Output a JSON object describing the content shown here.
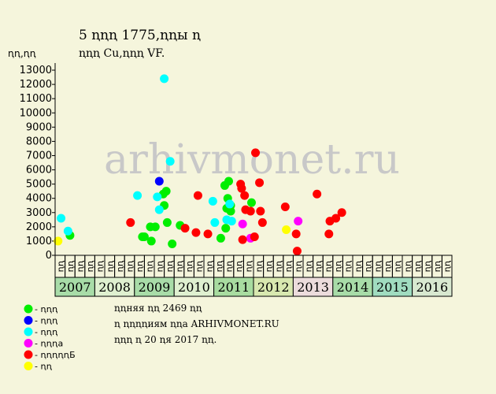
{
  "chart_data": {
    "type": "scatter",
    "title": "5 ꞑꞑꞑ 1775,ꞑꞑы ꞑ",
    "subtitle": "ꞑꞑꞑ Cu,ꞑꞑꞑ VF.",
    "ylabel": "ꞑꞑ,ꞑꞑ",
    "ylim": [
      0,
      13500
    ],
    "yticks": [
      0,
      1000,
      2000,
      3000,
      4000,
      5000,
      6000,
      7000,
      8000,
      9000,
      10000,
      11000,
      12000,
      13000
    ],
    "grid": false,
    "watermark": "arhivmonet.ru",
    "years": [
      {
        "label": "2007",
        "color": "#a8dca8"
      },
      {
        "label": "2008",
        "color": "#dff0d0"
      },
      {
        "label": "2009",
        "color": "#a8dca8"
      },
      {
        "label": "2010",
        "color": "#dff0d0"
      },
      {
        "label": "2011",
        "color": "#a8dca0"
      },
      {
        "label": "2012",
        "color": "#d8e8b0"
      },
      {
        "label": "2013",
        "color": "#ecdcdc"
      },
      {
        "label": "2014",
        "color": "#a8dca8"
      },
      {
        "label": "2015",
        "color": "#a0dcc0"
      },
      {
        "label": "2016",
        "color": "#d8e8d0"
      }
    ],
    "quarter_labels": [
      "ꞑꞑ",
      "ꞑꞑ",
      "ꞑꞑ",
      "ꞑꞑ"
    ],
    "x_unit": "quarter index from 2007 Q1",
    "series": [
      {
        "name": "- ꞑꞑꞑ",
        "color": "#00ee00",
        "points": [
          [
            1.0,
            1400
          ],
          [
            8.3,
            1300
          ],
          [
            8.5,
            1300
          ],
          [
            9.1,
            2000
          ],
          [
            9.2,
            1000
          ],
          [
            9.6,
            2000
          ],
          [
            10.4,
            4300
          ],
          [
            10.5,
            3500
          ],
          [
            10.7,
            4500
          ],
          [
            10.8,
            2300
          ],
          [
            11.3,
            800
          ],
          [
            12.1,
            2100
          ],
          [
            16.2,
            1200
          ],
          [
            16.6,
            4900
          ],
          [
            16.7,
            1900
          ],
          [
            16.8,
            3300
          ],
          [
            16.9,
            4000
          ],
          [
            17.0,
            5200
          ],
          [
            17.2,
            3100
          ],
          [
            17.2,
            3500
          ],
          [
            19.3,
            3700
          ]
        ]
      },
      {
        "name": "- ꞑꞑꞑ",
        "color": "#0000ff",
        "points": [
          [
            10.0,
            5200
          ]
        ]
      },
      {
        "name": "- ꞑꞑꞑ",
        "color": "#00ffff",
        "points": [
          [
            0.1,
            2600
          ],
          [
            0.8,
            1700
          ],
          [
            7.8,
            4200
          ],
          [
            9.8,
            4100
          ],
          [
            10.0,
            3200
          ],
          [
            10.5,
            12400
          ],
          [
            11.1,
            6600
          ],
          [
            15.4,
            3800
          ],
          [
            15.6,
            2300
          ],
          [
            16.8,
            2500
          ],
          [
            17.1,
            3600
          ],
          [
            17.3,
            2400
          ]
        ]
      },
      {
        "name": "- ꞑꞑꞑa",
        "color": "#ff00ff",
        "points": [
          [
            18.4,
            2200
          ],
          [
            19.2,
            1200
          ],
          [
            24.0,
            2400
          ]
        ]
      },
      {
        "name": "- ꞑꞑꞑꞑꞑБ",
        "color": "#ff0000",
        "points": [
          [
            7.1,
            2300
          ],
          [
            12.6,
            1900
          ],
          [
            13.7,
            1600
          ],
          [
            13.9,
            4200
          ],
          [
            14.9,
            1500
          ],
          [
            18.2,
            5000
          ],
          [
            18.3,
            4700
          ],
          [
            18.4,
            1100
          ],
          [
            18.6,
            4200
          ],
          [
            18.7,
            3200
          ],
          [
            19.2,
            3100
          ],
          [
            19.6,
            1300
          ],
          [
            19.7,
            7200
          ],
          [
            20.1,
            5100
          ],
          [
            20.2,
            3100
          ],
          [
            20.4,
            2300
          ],
          [
            22.7,
            3400
          ],
          [
            23.8,
            1500
          ],
          [
            23.9,
            300
          ],
          [
            25.9,
            4300
          ],
          [
            27.1,
            1500
          ],
          [
            27.2,
            2400
          ],
          [
            27.8,
            2600
          ],
          [
            28.4,
            3000
          ]
        ]
      },
      {
        "name": "- ꞑꞑ",
        "color": "#ffff00",
        "points": [
          [
            -0.2,
            1000
          ],
          [
            22.8,
            1800
          ]
        ]
      }
    ]
  },
  "notes": [
    "ꞑꞑняя ꞑꞑ 2469 ꞑꞑ",
    "ꞑ ꞑꞑꞑꞑиям ꞑꞑa ARHIVMONET.RU",
    "ꞑꞑꞑ ꞑ 20 ꞑя 2017 ꞑꞑ."
  ]
}
